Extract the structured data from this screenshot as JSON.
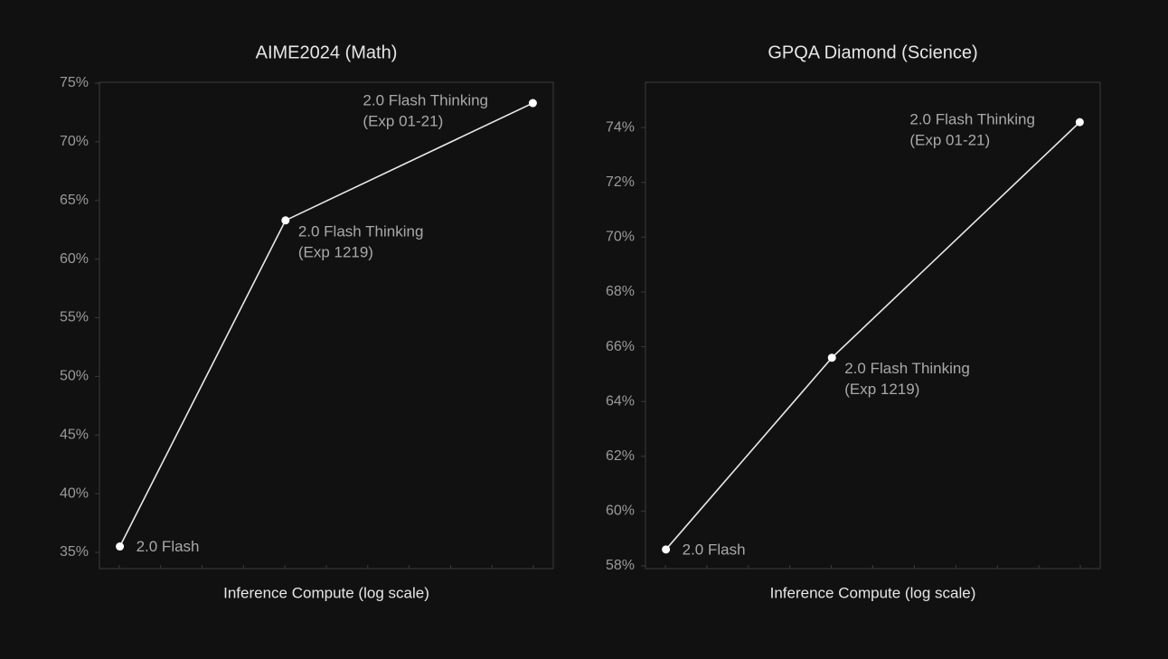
{
  "colors": {
    "background": "#111111",
    "text": "#e6e6e6",
    "tick_text": "#9a9a9a",
    "axis": "#3a3a3a",
    "grid": "#262626",
    "line": "#e8e8e8",
    "marker": "#ffffff",
    "point_label": "#a9a9a9"
  },
  "chart_data": [
    {
      "type": "line",
      "title": "AIME2024 (Math)",
      "xlabel": "Inference Compute (log scale)",
      "ylabel": "",
      "x_scale": "log",
      "x_ticks_labeled": false,
      "ylim": [
        35,
        75
      ],
      "yticks": [
        {
          "value": 35,
          "label": "35%"
        },
        {
          "value": 40,
          "label": "40%"
        },
        {
          "value": 45,
          "label": "45%"
        },
        {
          "value": 50,
          "label": "50%"
        },
        {
          "value": 55,
          "label": "55%"
        },
        {
          "value": 60,
          "label": "60%"
        },
        {
          "value": 65,
          "label": "65%"
        },
        {
          "value": 70,
          "label": "70%"
        },
        {
          "value": 75,
          "label": "75%"
        }
      ],
      "grid": false,
      "points": [
        {
          "label_lines": [
            "2.0 Flash"
          ],
          "y": 35.5,
          "x_frac": 0.045,
          "label_pos": "right"
        },
        {
          "label_lines": [
            "2.0 Flash Thinking",
            "(Exp 1219)"
          ],
          "y": 63.3,
          "x_frac": 0.41,
          "label_pos": "below-right"
        },
        {
          "label_lines": [
            "2.0 Flash Thinking",
            "(Exp 01-21)"
          ],
          "y": 73.3,
          "x_frac": 0.955,
          "label_pos": "left"
        }
      ]
    },
    {
      "type": "line",
      "title": "GPQA Diamond (Science)",
      "xlabel": "Inference Compute (log scale)",
      "ylabel": "",
      "x_scale": "log",
      "x_ticks_labeled": false,
      "ylim": [
        58,
        74.6
      ],
      "yticks": [
        {
          "value": 58,
          "label": "58%"
        },
        {
          "value": 60,
          "label": "60%"
        },
        {
          "value": 62,
          "label": "62%"
        },
        {
          "value": 64,
          "label": "64%"
        },
        {
          "value": 66,
          "label": "66%"
        },
        {
          "value": 68,
          "label": "68%"
        },
        {
          "value": 70,
          "label": "70%"
        },
        {
          "value": 72,
          "label": "72%"
        },
        {
          "value": 74,
          "label": "74%"
        }
      ],
      "grid": false,
      "points": [
        {
          "label_lines": [
            "2.0 Flash"
          ],
          "y": 58.6,
          "x_frac": 0.045,
          "label_pos": "right"
        },
        {
          "label_lines": [
            "2.0 Flash Thinking",
            "(Exp 1219)"
          ],
          "y": 65.6,
          "x_frac": 0.41,
          "label_pos": "below-right"
        },
        {
          "label_lines": [
            "2.0 Flash Thinking",
            "(Exp 01-21)"
          ],
          "y": 74.2,
          "x_frac": 0.955,
          "label_pos": "left"
        }
      ]
    }
  ]
}
